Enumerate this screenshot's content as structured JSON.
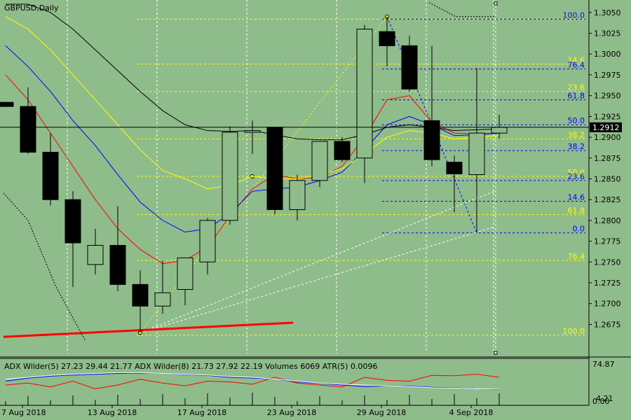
{
  "chart_data": {
    "type": "candlestick",
    "symbol_label": "GBPUSD,Daily",
    "colors": {
      "background": "#8fbc8b",
      "bull_body": "#8fbc8b",
      "bear_body": "#000000",
      "wick": "#000000",
      "ma_red": "#ff0000",
      "ma_blue": "#0000ff",
      "ma_yellow": "#ffff00",
      "ma_black": "#000000",
      "fib_yellow": "#ffff00",
      "fib_blue": "#0000ff",
      "grid": "#ffffff",
      "current_price_bg": "#000000"
    },
    "y_axis": {
      "min": 1.265,
      "max": 1.306,
      "ticks": [
        "1.3050",
        "1.3025",
        "1.3000",
        "1.2975",
        "1.2950",
        "1.2925",
        "1.2900",
        "1.2875",
        "1.2850",
        "1.2825",
        "1.2800",
        "1.2775",
        "1.2750",
        "1.2725",
        "1.2700",
        "1.2675"
      ]
    },
    "current_price": "1.2912",
    "x_labels": [
      {
        "text": "7 Aug 2018",
        "index": 1
      },
      {
        "text": "13 Aug 2018",
        "index": 5
      },
      {
        "text": "17 Aug 2018",
        "index": 9
      },
      {
        "text": "23 Aug 2018",
        "index": 13
      },
      {
        "text": "29 Aug 2018",
        "index": 17
      },
      {
        "text": "4 Sep 2018",
        "index": 21
      }
    ],
    "vertical_grid_indices": [
      3,
      7,
      11,
      15,
      19,
      22
    ],
    "candles": [
      {
        "o": 1.2942,
        "h": 1.2942,
        "l": 1.2937,
        "c": 1.2937
      },
      {
        "o": 1.2937,
        "h": 1.296,
        "l": 1.288,
        "c": 1.2882
      },
      {
        "o": 1.2882,
        "h": 1.2905,
        "l": 1.2818,
        "c": 1.2825
      },
      {
        "o": 1.2825,
        "h": 1.2835,
        "l": 1.272,
        "c": 1.2773
      },
      {
        "o": 1.2747,
        "h": 1.279,
        "l": 1.2735,
        "c": 1.277
      },
      {
        "o": 1.277,
        "h": 1.2817,
        "l": 1.2715,
        "c": 1.2723
      },
      {
        "o": 1.2723,
        "h": 1.274,
        "l": 1.2665,
        "c": 1.2697
      },
      {
        "o": 1.2697,
        "h": 1.2752,
        "l": 1.2688,
        "c": 1.2713
      },
      {
        "o": 1.2717,
        "h": 1.2755,
        "l": 1.2698,
        "c": 1.2755
      },
      {
        "o": 1.275,
        "h": 1.2803,
        "l": 1.2735,
        "c": 1.28
      },
      {
        "o": 1.28,
        "h": 1.2913,
        "l": 1.2795,
        "c": 1.2906
      },
      {
        "o": 1.2906,
        "h": 1.292,
        "l": 1.288,
        "c": 1.2908
      },
      {
        "o": 1.2912,
        "h": 1.2912,
        "l": 1.2807,
        "c": 1.2813
      },
      {
        "o": 1.2813,
        "h": 1.2855,
        "l": 1.28,
        "c": 1.2848
      },
      {
        "o": 1.2848,
        "h": 1.2895,
        "l": 1.284,
        "c": 1.2895
      },
      {
        "o": 1.2895,
        "h": 1.29,
        "l": 1.287,
        "c": 1.2873
      },
      {
        "o": 1.2875,
        "h": 1.3035,
        "l": 1.2845,
        "c": 1.303
      },
      {
        "o": 1.3027,
        "h": 1.3045,
        "l": 1.2985,
        "c": 1.301
      },
      {
        "o": 1.301,
        "h": 1.3022,
        "l": 1.2955,
        "c": 1.2958
      },
      {
        "o": 1.292,
        "h": 1.301,
        "l": 1.2865,
        "c": 1.2873
      },
      {
        "o": 1.287,
        "h": 1.2878,
        "l": 1.281,
        "c": 1.2856
      },
      {
        "o": 1.2855,
        "h": 1.2983,
        "l": 1.2785,
        "c": 1.2905
      },
      {
        "o": 1.2905,
        "h": 1.2927,
        "l": 1.2898,
        "c": 1.2912
      }
    ],
    "ma_lines": [
      {
        "color": "#ff0000",
        "values": [
          1.2975,
          1.2945,
          1.2905,
          1.2865,
          1.2825,
          1.279,
          1.2765,
          1.2748,
          1.2752,
          1.2768,
          1.2805,
          1.2838,
          1.2855,
          1.285,
          1.2852,
          1.2865,
          1.29,
          1.2945,
          1.295,
          1.2918,
          1.2905,
          1.2904,
          1.2905
        ]
      },
      {
        "color": "#0000ff",
        "values": [
          1.301,
          1.2985,
          1.2955,
          1.292,
          1.289,
          1.2855,
          1.2822,
          1.28,
          1.2786,
          1.279,
          1.2808,
          1.2835,
          1.2838,
          1.284,
          1.2848,
          1.2858,
          1.2885,
          1.2915,
          1.2925,
          1.2915,
          1.2902,
          1.2903,
          1.2905
        ]
      },
      {
        "color": "#ffff00",
        "values": [
          1.3045,
          1.303,
          1.3005,
          1.2975,
          1.2945,
          1.2915,
          1.2885,
          1.286,
          1.285,
          1.2838,
          1.2842,
          1.2853,
          1.285,
          1.285,
          1.2855,
          1.2862,
          1.288,
          1.29,
          1.2908,
          1.2905,
          1.2898,
          1.29,
          1.2902
        ]
      },
      {
        "color": "#000000",
        "values": [
          1.306,
          1.306,
          1.305,
          1.303,
          1.3005,
          1.298,
          1.2955,
          1.2932,
          1.2915,
          1.2908,
          1.2907,
          1.2908,
          1.2903,
          1.2898,
          1.2897,
          1.2897,
          1.2903,
          1.2912,
          1.2915,
          1.2912,
          1.2908,
          1.2909,
          1.291
        ]
      }
    ],
    "fib_yellow": [
      {
        "label": "100.0",
        "price": 1.3042
      },
      {
        "label": "14.6",
        "price": 1.2988
      },
      {
        "label": "23.6",
        "price": 1.2955
      },
      {
        "label": "38.2",
        "price": 1.2898
      },
      {
        "label": "50.0",
        "price": 1.2853
      },
      {
        "label": "61.8",
        "price": 1.2807
      },
      {
        "label": "76.4",
        "price": 1.2752
      },
      {
        "label": "100.0",
        "price": 1.2662
      }
    ],
    "fib_blue": [
      {
        "label": "100.0",
        "price": 1.3042
      },
      {
        "label": "76.4",
        "price": 1.2982
      },
      {
        "label": "61.8",
        "price": 1.2945
      },
      {
        "label": "50.0",
        "price": 1.2915
      },
      {
        "label": "38.2",
        "price": 1.2884
      },
      {
        "label": "23.6",
        "price": 1.2848
      },
      {
        "label": "14.6",
        "price": 1.2823
      },
      {
        "label": "0.0",
        "price": 1.2785
      }
    ],
    "indicator": {
      "label": "ADX Wilder(5) 27.23 29.44 21.77 ADX Wilder(8) 21.73 27.92 22.19 Volumes 6069 ATR(5) 0.0096",
      "scale_top": "74.87",
      "scale_mid": "4.21",
      "scale_bottom": "0.00",
      "min": 0,
      "max": 80,
      "series": [
        {
          "color": "#ff0000",
          "values": [
            40,
            45,
            35,
            50,
            30,
            40,
            55,
            45,
            38,
            50,
            48,
            42,
            60,
            45,
            40,
            35,
            60,
            52,
            50,
            65,
            64,
            68,
            60
          ]
        },
        {
          "color": "#0000ff",
          "values": [
            50,
            58,
            63,
            66,
            68,
            70,
            71,
            70,
            67,
            65,
            60,
            58,
            55,
            48,
            44,
            40,
            36,
            38,
            37,
            34,
            33,
            30,
            28
          ]
        },
        {
          "color": "#ffffff",
          "values": [
            55,
            60,
            65,
            68,
            70,
            72,
            72,
            70,
            68,
            66,
            62,
            60,
            55,
            50,
            45,
            42,
            40,
            38,
            36,
            33,
            32,
            30,
            29
          ]
        }
      ]
    }
  }
}
